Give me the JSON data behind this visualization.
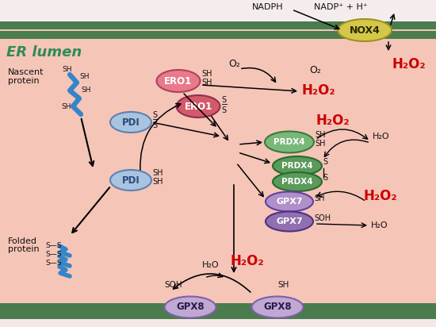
{
  "bg_color": "#f5c5b8",
  "top_bg_color": "#f5e8e8",
  "er_membrane_color": "#4a7c4e",
  "er_lumen_label": "ER lumen",
  "er_lumen_color": "#2e8b57",
  "nox4_color": "#d4c84a",
  "ero1_top_color": "#e87a8a",
  "ero1_bot_color": "#d45a6a",
  "pdi_color": "#a8c4e0",
  "prdx4_top_color": "#7ab87a",
  "prdx4_bot_color": "#5a9a5a",
  "gpx7_top_color": "#b090c8",
  "gpx7_bot_color": "#9070b0",
  "gpx8_color": "#c0a8d4",
  "h2o2_color": "#cc0000",
  "nadph_text": "NADPH",
  "nadp_text": "NADP⁺ + H⁺",
  "h2o2_label": "H₂O₂",
  "h2o_label": "H₂O",
  "o2_label": "O₂"
}
